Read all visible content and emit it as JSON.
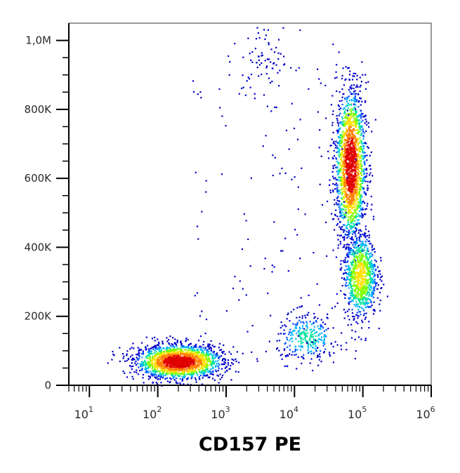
{
  "chart_data": {
    "type": "scatter",
    "subtype": "flow-cytometry-density-dot-plot",
    "title": "",
    "xlabel": "CD157 PE",
    "ylabel": "",
    "x_scale": "log",
    "xlim": [
      5,
      1000000
    ],
    "ylim": [
      0,
      1050000
    ],
    "x_ticks": [
      {
        "base": "10",
        "exp": "1",
        "value": 10
      },
      {
        "base": "10",
        "exp": "2",
        "value": 100
      },
      {
        "base": "10",
        "exp": "3",
        "value": 1000
      },
      {
        "base": "10",
        "exp": "4",
        "value": 10000
      },
      {
        "base": "10",
        "exp": "5",
        "value": 100000
      },
      {
        "base": "10",
        "exp": "6",
        "value": 1000000
      }
    ],
    "y_ticks": [
      {
        "label": "0",
        "value": 0
      },
      {
        "label": "200K",
        "value": 200000
      },
      {
        "label": "400K",
        "value": 400000
      },
      {
        "label": "600K",
        "value": 600000
      },
      {
        "label": "800K",
        "value": 800000
      },
      {
        "label": "1,0M",
        "value": 1000000
      }
    ],
    "grid": false,
    "legend": "none",
    "color_scale": [
      "#0000c8",
      "#0050ff",
      "#00b4ff",
      "#00e0a0",
      "#80ff00",
      "#ffe000",
      "#ff8000",
      "#e00000"
    ],
    "populations": [
      {
        "x_center": 200,
        "y_center": 70000,
        "x_log_spread": 0.32,
        "y_spread": 25000,
        "density": "high"
      },
      {
        "x_center": 65000,
        "y_center": 640000,
        "x_log_spread": 0.11,
        "y_spread": 110000,
        "density": "high"
      },
      {
        "x_center": 90000,
        "y_center": 320000,
        "x_log_spread": 0.12,
        "y_spread": 60000,
        "density": "medium"
      },
      {
        "x_center": 15000,
        "y_center": 140000,
        "x_log_spread": 0.22,
        "y_spread": 35000,
        "density": "low"
      },
      {
        "x_center": 4000,
        "y_center": 950000,
        "x_log_spread": 0.2,
        "y_spread": 60000,
        "density": "sparse"
      }
    ]
  }
}
